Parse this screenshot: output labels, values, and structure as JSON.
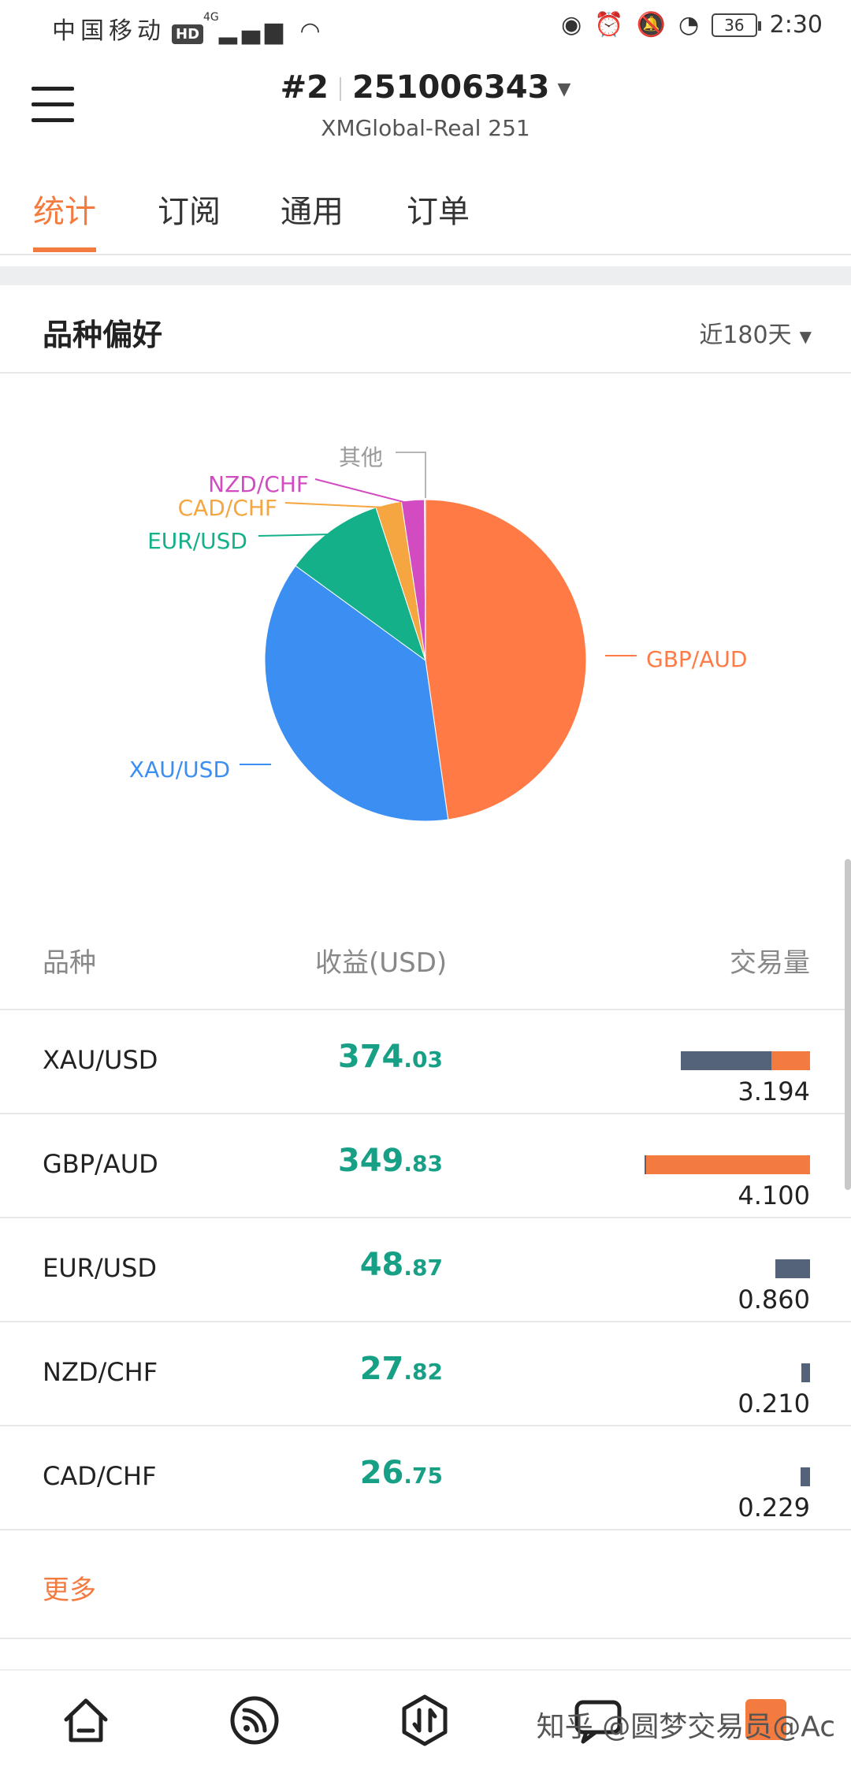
{
  "status_bar": {
    "carrier": "中国移动",
    "hd": "HD",
    "network": "4G",
    "battery": "36",
    "time": "2:30"
  },
  "header": {
    "menu_icon": "hamburger-menu-icon",
    "account_index": "#2",
    "account_number": "251006343",
    "server": "XMGlobal-Real 251"
  },
  "tabs": [
    {
      "label": "统计",
      "active": true
    },
    {
      "label": "订阅",
      "active": false
    },
    {
      "label": "通用",
      "active": false
    },
    {
      "label": "订单",
      "active": false
    }
  ],
  "section": {
    "title": "品种偏好",
    "period": "近180天"
  },
  "chart_data": {
    "type": "pie",
    "slices": [
      {
        "label": "GBP/AUD",
        "value": 47.8,
        "color": "#ff7a45"
      },
      {
        "label": "XAU/USD",
        "value": 37.3,
        "color": "#3c8ff2"
      },
      {
        "label": "EUR/USD",
        "value": 10.0,
        "color": "#13b08a"
      },
      {
        "label": "CAD/CHF",
        "value": 2.6,
        "color": "#f5a640"
      },
      {
        "label": "NZD/CHF",
        "value": 2.3,
        "color": "#d24bc1"
      },
      {
        "label": "其他",
        "value": 0.1,
        "color": "#b5b5b5"
      }
    ]
  },
  "table": {
    "headers": {
      "symbol": "品种",
      "profit": "收益(USD)",
      "volume": "交易量"
    },
    "rows": [
      {
        "symbol": "XAU/USD",
        "profit_int": "374",
        "profit_dec": ".03",
        "volume": "3.194",
        "bar_total": 0.78,
        "bar_orange_fraction": 0.3
      },
      {
        "symbol": "GBP/AUD",
        "profit_int": "349",
        "profit_dec": ".83",
        "volume": "4.100",
        "bar_total": 1.0,
        "bar_orange_fraction": 0.99
      },
      {
        "symbol": "EUR/USD",
        "profit_int": "48",
        "profit_dec": ".87",
        "volume": "0.860",
        "bar_total": 0.21,
        "bar_orange_fraction": 0.0
      },
      {
        "symbol": "NZD/CHF",
        "profit_int": "27",
        "profit_dec": ".82",
        "volume": "0.210",
        "bar_total": 0.05,
        "bar_orange_fraction": 0.0
      },
      {
        "symbol": "CAD/CHF",
        "profit_int": "26",
        "profit_dec": ".75",
        "volume": "0.229",
        "bar_total": 0.055,
        "bar_orange_fraction": 0.0
      }
    ],
    "more_label": "更多"
  },
  "colors": {
    "accent": "#f47b3f",
    "profit": "#17a085",
    "bar_dark": "#55637a"
  },
  "bottom_nav": {
    "icons": [
      "home-icon",
      "feed-icon",
      "trade-icon",
      "chat-icon"
    ],
    "watermark": "知乎 @圆梦交易员@Ac"
  }
}
